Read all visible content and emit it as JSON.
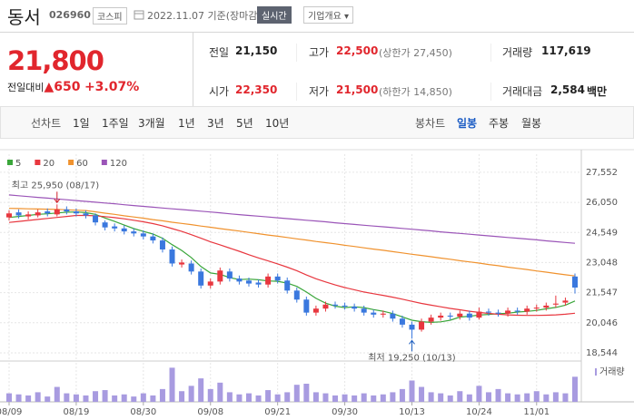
{
  "header": {
    "name": "동서",
    "code": "026960",
    "market": "코스피",
    "date": "2022.11.07",
    "basis": "기준(장마감)",
    "realtime": "실시간",
    "company": "기업개요"
  },
  "quote": {
    "price": "21,800",
    "change_label": "전일대비",
    "change": "650",
    "change_rate": "+3.07%"
  },
  "stats": [
    {
      "label": "전일",
      "value": "21,150"
    },
    {
      "label": "고가",
      "value": "22,500",
      "note": "(상한가 27,450)"
    },
    {
      "label": "거래량",
      "value": "117,619"
    },
    {
      "label": "시가",
      "value": "22,350"
    },
    {
      "label": "저가",
      "value": "21,500",
      "note": "(하한가 14,850)"
    },
    {
      "label": "거래대금",
      "value": "2,584",
      "unit": "백만"
    }
  ],
  "tabs": {
    "line_label": "선차트",
    "line": [
      "1일",
      "1주일",
      "3개월",
      "1년",
      "3년",
      "5년",
      "10년"
    ],
    "candle_label": "봉차트",
    "candle": [
      "일봉",
      "주봉",
      "월봉"
    ]
  },
  "chart_data": {
    "type": "candlestick",
    "up_color": "#e8373f",
    "down_color": "#3a78de",
    "grid": true,
    "categories": [
      "08/09",
      null,
      null,
      null,
      null,
      null,
      null,
      "08/19",
      null,
      null,
      null,
      null,
      null,
      null,
      "08/30",
      null,
      null,
      null,
      null,
      null,
      null,
      "09/08",
      null,
      null,
      null,
      null,
      null,
      null,
      "09/21",
      null,
      null,
      null,
      null,
      null,
      null,
      "09/30",
      null,
      null,
      null,
      null,
      null,
      null,
      "10/13",
      null,
      null,
      null,
      null,
      null,
      null,
      "10/24",
      null,
      null,
      null,
      null,
      null,
      "11/01",
      null,
      null,
      null,
      null
    ],
    "open": [
      25300,
      25550,
      25350,
      25400,
      25600,
      25450,
      25700,
      25600,
      25500,
      25400,
      25050,
      24850,
      24750,
      24600,
      24500,
      24350,
      24150,
      23700,
      22950,
      23000,
      22600,
      21900,
      22100,
      22600,
      22250,
      22150,
      22050,
      21950,
      22350,
      22150,
      21650,
      21200,
      20550,
      20750,
      20950,
      20900,
      20850,
      20750,
      20550,
      20450,
      20500,
      20250,
      19950,
      19700,
      20100,
      20300,
      20400,
      20350,
      20500,
      20300,
      20600,
      20550,
      20500,
      20650,
      20600,
      20750,
      20800,
      20950,
      21050,
      22350
    ],
    "high": [
      25650,
      25700,
      25600,
      25700,
      25750,
      25950,
      25850,
      25750,
      25650,
      25500,
      25150,
      25000,
      24900,
      24750,
      24650,
      24500,
      24300,
      23850,
      23200,
      23150,
      22750,
      22250,
      22800,
      22750,
      22400,
      22300,
      22200,
      22500,
      22500,
      22300,
      21800,
      21350,
      20900,
      21100,
      21100,
      21050,
      21000,
      20900,
      20700,
      20650,
      20650,
      20400,
      20100,
      20250,
      20450,
      20550,
      20550,
      20650,
      20650,
      20800,
      20750,
      20700,
      20800,
      20800,
      20900,
      20950,
      21050,
      21400,
      21300,
      22500
    ],
    "low": [
      25150,
      25250,
      25200,
      25300,
      25350,
      25350,
      25450,
      25350,
      25250,
      24900,
      24650,
      24600,
      24450,
      24350,
      24200,
      24000,
      23550,
      22850,
      22800,
      22450,
      21750,
      21750,
      21950,
      22100,
      21950,
      21850,
      21800,
      21800,
      22000,
      21500,
      21050,
      20400,
      20400,
      20600,
      20750,
      20700,
      20600,
      20400,
      20300,
      20300,
      20100,
      19800,
      19250,
      19600,
      19950,
      20150,
      20200,
      20200,
      20150,
      20200,
      20400,
      20350,
      20350,
      20450,
      20450,
      20600,
      20650,
      20800,
      20900,
      21500
    ],
    "close": [
      25500,
      25400,
      25450,
      25550,
      25500,
      25700,
      25600,
      25500,
      25400,
      25050,
      24800,
      24750,
      24600,
      24500,
      24350,
      24150,
      23700,
      23000,
      23050,
      22600,
      21900,
      22100,
      22650,
      22250,
      22100,
      22000,
      21950,
      22350,
      22150,
      21650,
      21200,
      20550,
      20750,
      20950,
      20900,
      20850,
      20750,
      20550,
      20450,
      20500,
      20250,
      19950,
      19700,
      20100,
      20300,
      20400,
      20350,
      20500,
      20300,
      20600,
      20550,
      20500,
      20650,
      20600,
      20750,
      20800,
      20900,
      21000,
      21150,
      21800
    ],
    "series": [
      {
        "name": "5",
        "color": "#3aa63a",
        "values": [
          25300,
          25350,
          25400,
          25450,
          25480,
          25520,
          25560,
          25570,
          25540,
          25450,
          25270,
          25100,
          24920,
          24740,
          24600,
          24470,
          24260,
          23940,
          23650,
          23300,
          22850,
          22530,
          22460,
          22300,
          22200,
          22220,
          22190,
          22130,
          22110,
          22020,
          21860,
          21580,
          21260,
          21020,
          20870,
          20800,
          20840,
          20800,
          20700,
          20620,
          20500,
          20340,
          20170,
          20100,
          20060,
          20090,
          20170,
          20330,
          20370,
          20430,
          20460,
          20490,
          20520,
          20580,
          20610,
          20660,
          20740,
          20810,
          20920,
          21130
        ]
      },
      {
        "name": "20",
        "color": "#e8373f",
        "values": [
          25050,
          25100,
          25150,
          25200,
          25250,
          25300,
          25350,
          25400,
          25400,
          25380,
          25340,
          25290,
          25230,
          25160,
          25080,
          24990,
          24880,
          24740,
          24600,
          24440,
          24260,
          24080,
          23930,
          23770,
          23610,
          23440,
          23280,
          23130,
          22980,
          22820,
          22640,
          22430,
          22240,
          22080,
          21930,
          21800,
          21690,
          21580,
          21490,
          21410,
          21320,
          21220,
          21110,
          21010,
          20920,
          20840,
          20760,
          20690,
          20620,
          20560,
          20510,
          20470,
          20440,
          20420,
          20410,
          20410,
          20420,
          20440,
          20470,
          20520
        ]
      },
      {
        "name": "60",
        "color": "#f0922e",
        "values": [
          25750,
          25740,
          25730,
          25720,
          25710,
          25700,
          25680,
          25660,
          25640,
          25580,
          25510,
          25450,
          25380,
          25320,
          25260,
          25190,
          25130,
          25060,
          25000,
          24940,
          24870,
          24810,
          24740,
          24680,
          24620,
          24550,
          24490,
          24420,
          24360,
          24300,
          24230,
          24170,
          24100,
          24040,
          23980,
          23910,
          23850,
          23780,
          23720,
          23660,
          23590,
          23530,
          23460,
          23400,
          23340,
          23270,
          23210,
          23140,
          23080,
          23020,
          22950,
          22890,
          22820,
          22760,
          22700,
          22630,
          22570,
          22500,
          22440,
          22380
        ]
      },
      {
        "name": "120",
        "color": "#9b55b8",
        "values": [
          26420,
          26380,
          26340,
          26300,
          26260,
          26220,
          26180,
          26140,
          26100,
          26060,
          26020,
          25980,
          25930,
          25890,
          25850,
          25810,
          25770,
          25730,
          25690,
          25650,
          25610,
          25570,
          25530,
          25480,
          25440,
          25400,
          25360,
          25320,
          25280,
          25240,
          25200,
          25160,
          25120,
          25080,
          25030,
          24990,
          24950,
          24910,
          24870,
          24830,
          24790,
          24750,
          24710,
          24670,
          24630,
          24580,
          24540,
          24500,
          24460,
          24420,
          24380,
          24340,
          24300,
          24260,
          24220,
          24180,
          24130,
          24090,
          24050,
          24010
        ]
      }
    ],
    "volume": {
      "name": "거래량",
      "color": "#a89be0",
      "ylim": [
        0,
        170000
      ],
      "values": [
        40000,
        35000,
        30000,
        45000,
        25000,
        70000,
        40000,
        35000,
        30000,
        50000,
        55000,
        30000,
        35000,
        25000,
        40000,
        30000,
        60000,
        160000,
        50000,
        75000,
        110000,
        60000,
        90000,
        45000,
        35000,
        40000,
        30000,
        55000,
        35000,
        45000,
        80000,
        85000,
        45000,
        40000,
        30000,
        35000,
        30000,
        40000,
        30000,
        35000,
        45000,
        60000,
        100000,
        70000,
        45000,
        40000,
        30000,
        50000,
        35000,
        75000,
        45000,
        60000,
        40000,
        35000,
        40000,
        50000,
        35000,
        45000,
        40000,
        117619
      ]
    },
    "ylim": [
      18270,
      28000
    ],
    "yticks": [
      {
        "value": 27552,
        "label": "27,552"
      },
      {
        "value": 26050,
        "label": "26,050"
      },
      {
        "value": 24549,
        "label": "24,549"
      },
      {
        "value": 23048,
        "label": "23,048"
      },
      {
        "value": 21547,
        "label": "21,547"
      },
      {
        "value": 20046,
        "label": "20,046"
      },
      {
        "value": 18544,
        "label": "18,544"
      }
    ],
    "annotations": [
      "최고 25,950 (08/17)",
      "최저 19,250 (10/13)"
    ]
  }
}
